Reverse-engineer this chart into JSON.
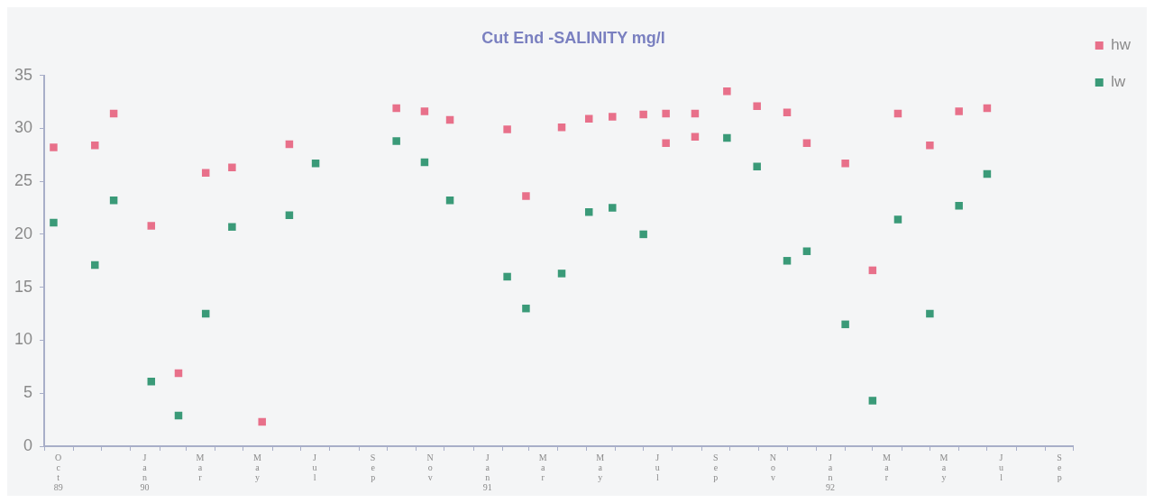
{
  "chart_data": {
    "type": "scatter",
    "title": "Cut End -SALINITY mg/l",
    "marker": "square",
    "legend": "top right",
    "grid": false,
    "ylim": [
      0,
      35
    ],
    "yticks": [
      0,
      5,
      10,
      15,
      20,
      25,
      30,
      35
    ],
    "xlim": [
      "1989-10-01",
      "1992-10-01"
    ],
    "xticks": [
      {
        "value": "1989-10",
        "label": null
      },
      {
        "value": "1989-10-16",
        "label": "Oct 89"
      },
      {
        "value": "1989-11",
        "label": null
      },
      {
        "value": "1989-12",
        "label": null
      },
      {
        "value": "1990-01",
        "label": null
      },
      {
        "value": "1990-01-16",
        "label": "Jan 90"
      },
      {
        "value": "1990-02",
        "label": null
      },
      {
        "value": "1990-03",
        "label": null
      },
      {
        "value": "1990-03-16",
        "label": "Mar"
      },
      {
        "value": "1990-04",
        "label": null
      },
      {
        "value": "1990-05",
        "label": null
      },
      {
        "value": "1990-05-16",
        "label": "May"
      },
      {
        "value": "1990-06",
        "label": null
      },
      {
        "value": "1990-07",
        "label": null
      },
      {
        "value": "1990-07-16",
        "label": "Jul"
      },
      {
        "value": "1990-08",
        "label": null
      },
      {
        "value": "1990-09",
        "label": null
      },
      {
        "value": "1990-09-16",
        "label": "Sep"
      },
      {
        "value": "1990-10",
        "label": null
      },
      {
        "value": "1990-11",
        "label": null
      },
      {
        "value": "1990-11-16",
        "label": "Nov"
      },
      {
        "value": "1990-12",
        "label": null
      },
      {
        "value": "1991-01",
        "label": null
      },
      {
        "value": "1991-01-16",
        "label": "Jan 91"
      },
      {
        "value": "1991-02",
        "label": null
      },
      {
        "value": "1991-03",
        "label": null
      },
      {
        "value": "1991-03-16",
        "label": "Mar"
      },
      {
        "value": "1991-04",
        "label": null
      },
      {
        "value": "1991-05",
        "label": null
      },
      {
        "value": "1991-05-16",
        "label": "May"
      },
      {
        "value": "1991-06",
        "label": null
      },
      {
        "value": "1991-07",
        "label": null
      },
      {
        "value": "1991-07-16",
        "label": "Jul"
      },
      {
        "value": "1991-08",
        "label": null
      },
      {
        "value": "1991-09",
        "label": null
      },
      {
        "value": "1991-09-16",
        "label": "Sep"
      },
      {
        "value": "1991-10",
        "label": null
      },
      {
        "value": "1991-11",
        "label": null
      },
      {
        "value": "1991-11-16",
        "label": "Nov"
      },
      {
        "value": "1991-12",
        "label": null
      },
      {
        "value": "1992-01",
        "label": null
      },
      {
        "value": "1992-01-16",
        "label": "Jan 92"
      },
      {
        "value": "1992-02",
        "label": null
      },
      {
        "value": "1992-03",
        "label": null
      },
      {
        "value": "1992-03-16",
        "label": "Mar"
      },
      {
        "value": "1992-04",
        "label": null
      },
      {
        "value": "1992-05",
        "label": null
      },
      {
        "value": "1992-05-16",
        "label": "May"
      },
      {
        "value": "1992-06",
        "label": null
      },
      {
        "value": "1992-07",
        "label": null
      },
      {
        "value": "1992-07-16",
        "label": "Jul"
      },
      {
        "value": "1992-08",
        "label": null
      },
      {
        "value": "1992-09",
        "label": null
      },
      {
        "value": "1992-09-16",
        "label": "Sep"
      },
      {
        "value": "1992-10",
        "label": null
      }
    ],
    "series": [
      {
        "name": "hw",
        "color": "#e8708a",
        "x": [
          "1989-10-11",
          "1989-11-24",
          "1989-12-14",
          "1990-01-23",
          "1990-02-21",
          "1990-03-22",
          "1990-04-19",
          "1990-05-21",
          "1990-06-19",
          "1990-10-11",
          "1990-11-10",
          "1990-12-07",
          "1991-02-06",
          "1991-02-26",
          "1991-04-05",
          "1991-05-04",
          "1991-05-29",
          "1991-07-01",
          "1991-07-25",
          "1991-07-25",
          "1991-08-25",
          "1991-08-25",
          "1991-09-28",
          "1991-10-30",
          "1991-12-01",
          "1991-12-22",
          "1992-02-01",
          "1992-03-01",
          "1992-03-28",
          "1992-05-01",
          "1992-06-01",
          "1992-07-01"
        ],
        "values": [
          28.2,
          28.4,
          31.4,
          20.8,
          6.9,
          25.8,
          26.3,
          2.3,
          28.5,
          31.9,
          31.6,
          30.8,
          29.9,
          23.6,
          30.1,
          30.9,
          31.1,
          31.3,
          31.4,
          28.6,
          31.4,
          29.2,
          33.5,
          32.1,
          31.5,
          28.6,
          26.7,
          16.6,
          31.4,
          28.4,
          31.6,
          31.9
        ]
      },
      {
        "name": "lw",
        "color": "#3a9a78",
        "x": [
          "1989-10-11",
          "1989-11-24",
          "1989-12-14",
          "1990-01-23",
          "1990-02-21",
          "1990-03-22",
          "1990-04-19",
          "1990-06-19",
          "1990-07-17",
          "1990-10-11",
          "1990-11-10",
          "1990-12-07",
          "1991-02-06",
          "1991-02-26",
          "1991-04-05",
          "1991-05-04",
          "1991-05-29",
          "1991-07-01",
          "1991-09-28",
          "1991-10-30",
          "1991-12-01",
          "1991-12-22",
          "1992-02-01",
          "1992-03-01",
          "1992-03-28",
          "1992-05-01",
          "1992-06-01",
          "1992-07-01"
        ],
        "values": [
          21.1,
          17.1,
          23.2,
          6.1,
          2.9,
          12.5,
          20.7,
          21.8,
          26.7,
          28.8,
          26.8,
          23.2,
          16.0,
          13.0,
          16.3,
          22.1,
          22.5,
          20.0,
          29.1,
          26.4,
          17.5,
          18.4,
          11.5,
          4.3,
          21.4,
          12.5,
          22.7,
          25.7
        ]
      }
    ]
  }
}
